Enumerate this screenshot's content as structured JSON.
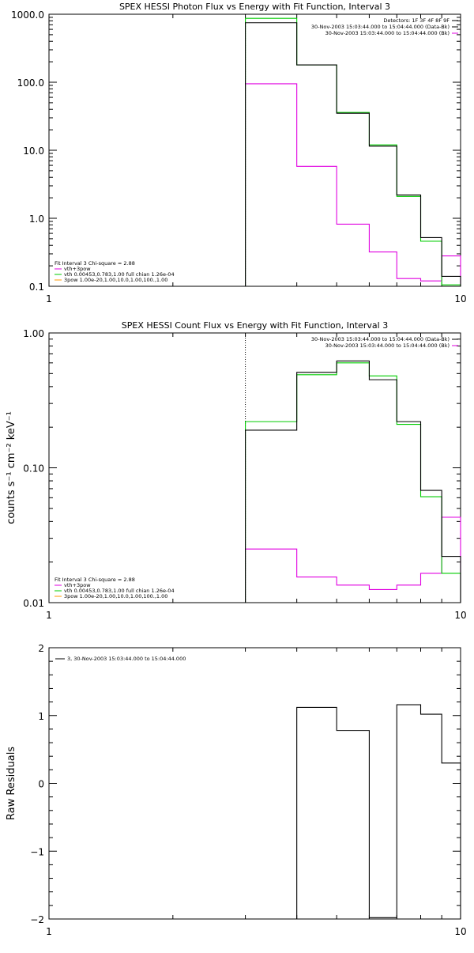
{
  "colors": {
    "black": "#000000",
    "magenta": "#e000e0",
    "green": "#00cc00",
    "orange": "#ff9900"
  },
  "chart_data": [
    {
      "type": "line",
      "title": "SPEX HESSI Photon Flux vs Energy with Fit Function, Interval 3",
      "ylabel": "",
      "xscale": "log",
      "yscale": "log",
      "xlim": [
        1,
        10
      ],
      "ylim": [
        0.1,
        1000
      ],
      "xticks": [
        {
          "v": 1,
          "label": "1"
        },
        {
          "v": 10,
          "label": "10"
        }
      ],
      "yticks": [
        {
          "v": 0.1,
          "label": "0.1"
        },
        {
          "v": 1,
          "label": "1.0"
        },
        {
          "v": 10,
          "label": "10.0"
        },
        {
          "v": 100,
          "label": "100.0"
        },
        {
          "v": 1000,
          "label": "1000.0"
        }
      ],
      "vline": 3,
      "info": [
        "Detectors: 1F 3F 4F 8F 9F",
        "30-Nov-2003 15:03:44.000 to 15:04:44.000 (Data-Bk)",
        "30-Nov-2003 15:03:44.000 to 15:04:44.000 (Bk)"
      ],
      "info_colors": [
        "#000000",
        "#000000",
        "#e000e0"
      ],
      "legend": [
        "Fit Interval 3   Chi-square = 2.88",
        "vth+3pow",
        "vth 0.00453,0.783,1.00  full chian 1.26e-04",
        "3pow 1.00e-20,1.00,10.0,1.00,100.,1.00"
      ],
      "legend_colors": [
        "#000000",
        "#e000e0",
        "#00cc00",
        "#ff9900"
      ],
      "edges": [
        3,
        4,
        5,
        6,
        7,
        8,
        9,
        10
      ],
      "series": [
        {
          "color": "#e000e0",
          "values": [
            95,
            5.8,
            0.82,
            0.32,
            0.13,
            0.12,
            0.28
          ]
        },
        {
          "color": "#00cc00",
          "values": [
            870,
            180,
            36,
            12,
            2.1,
            0.46,
            0.105
          ]
        },
        {
          "color": "#000000",
          "values": [
            750,
            180,
            35,
            11.5,
            2.2,
            0.52,
            0.14
          ]
        }
      ]
    },
    {
      "type": "line",
      "title": "SPEX HESSI Count Flux vs Energy with Fit Function, Interval 3",
      "ylabel": "counts s⁻¹ cm⁻² keV⁻¹",
      "xscale": "log",
      "yscale": "log",
      "xlim": [
        1,
        10
      ],
      "ylim": [
        0.01,
        1
      ],
      "xticks": [
        {
          "v": 1,
          "label": "1"
        },
        {
          "v": 10,
          "label": "10"
        }
      ],
      "yticks": [
        {
          "v": 0.01,
          "label": "0.01"
        },
        {
          "v": 0.1,
          "label": "0.10"
        },
        {
          "v": 1,
          "label": "1.00"
        }
      ],
      "vline": 3,
      "info": [
        "30-Nov-2003 15:03:44.000 to 15:04:44.000 (Data-Bk)",
        "30-Nov-2003 15:03:44.000 to 15:04:44.000 (Bk)"
      ],
      "info_colors": [
        "#000000",
        "#e000e0"
      ],
      "legend": [
        "Fit Interval 3   Chi-square = 2.88",
        "vth+3pow",
        "vth 0.00453,0.783,1.00  full chian 1.26e-04",
        "3pow 1.00e-20,1.00,10.0,1.00,100.,1.00"
      ],
      "legend_colors": [
        "#000000",
        "#e000e0",
        "#00cc00",
        "#ff9900"
      ],
      "edges": [
        3,
        4,
        5,
        6,
        7,
        8,
        9,
        10
      ],
      "series": [
        {
          "color": "#e000e0",
          "values": [
            0.025,
            0.0155,
            0.0135,
            0.0125,
            0.0135,
            0.0165,
            0.043
          ]
        },
        {
          "color": "#00cc00",
          "values": [
            0.22,
            0.49,
            0.6,
            0.48,
            0.21,
            0.061,
            0.0165
          ]
        },
        {
          "color": "#000000",
          "values": [
            0.19,
            0.51,
            0.62,
            0.45,
            0.22,
            0.068,
            0.022
          ]
        }
      ]
    },
    {
      "type": "line",
      "title": "",
      "ylabel": "Raw Residuals",
      "xscale": "log",
      "yscale": "linear",
      "xlim": [
        1,
        10
      ],
      "ylim": [
        -2,
        2
      ],
      "xticks": [
        {
          "v": 1,
          "label": "1"
        },
        {
          "v": 10,
          "label": "10"
        }
      ],
      "yticks": [
        {
          "v": -2,
          "label": "−2"
        },
        {
          "v": -1,
          "label": "−1"
        },
        {
          "v": 0,
          "label": "0"
        },
        {
          "v": 1,
          "label": "1"
        },
        {
          "v": 2,
          "label": "2"
        }
      ],
      "info": [],
      "info_colors": [],
      "legend": [
        "3, 30-Nov-2003 15:03:44.000 to 15:04:44.000"
      ],
      "legend_colors": [
        "#000000"
      ],
      "edges": [
        3,
        4,
        5,
        6,
        7,
        8,
        9,
        10
      ],
      "series": [
        {
          "color": "#000000",
          "values": [
            -2.0,
            1.12,
            0.78,
            -1.98,
            1.16,
            1.02,
            0.3
          ]
        }
      ]
    }
  ]
}
